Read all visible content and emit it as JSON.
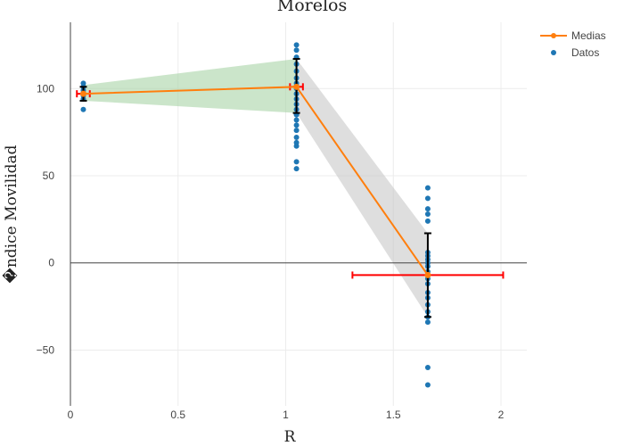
{
  "chart_data": {
    "type": "scatter",
    "title": "Morelos",
    "xlabel": "R",
    "ylabel": "�ndice Movilidad",
    "xlim": [
      0,
      2.12
    ],
    "ylim": [
      -82,
      138
    ],
    "x_ticks": [
      0,
      0.5,
      1,
      1.5,
      2
    ],
    "x_tick_labels": [
      "0",
      "0.5",
      "1",
      "1.5",
      "2"
    ],
    "y_ticks": [
      -50,
      0,
      50,
      100
    ],
    "y_tick_labels": [
      "−50",
      "0",
      "50",
      "100"
    ],
    "grid": true,
    "legend_position": "top-right",
    "colors": {
      "medias": "#ff7f0e",
      "datos": "#1f77b4",
      "band_green": "#a9d3a6",
      "band_gray": "#c8c8c8",
      "error_black": "#000000",
      "error_red": "#ff0000"
    },
    "series": [
      {
        "name": "Medias",
        "mode": "lines+markers",
        "x": [
          0.06,
          1.05,
          1.66
        ],
        "y": [
          97,
          101,
          -7
        ]
      },
      {
        "name": "Datos",
        "mode": "markers",
        "points": [
          {
            "x": 0.06,
            "y": 103
          },
          {
            "x": 0.06,
            "y": 101
          },
          {
            "x": 0.06,
            "y": 99
          },
          {
            "x": 0.06,
            "y": 97
          },
          {
            "x": 0.06,
            "y": 96
          },
          {
            "x": 0.06,
            "y": 94
          },
          {
            "x": 0.06,
            "y": 88
          },
          {
            "x": 1.05,
            "y": 125
          },
          {
            "x": 1.05,
            "y": 122
          },
          {
            "x": 1.05,
            "y": 118
          },
          {
            "x": 1.05,
            "y": 114
          },
          {
            "x": 1.05,
            "y": 110
          },
          {
            "x": 1.05,
            "y": 106
          },
          {
            "x": 1.05,
            "y": 103
          },
          {
            "x": 1.05,
            "y": 100
          },
          {
            "x": 1.05,
            "y": 97
          },
          {
            "x": 1.05,
            "y": 94
          },
          {
            "x": 1.05,
            "y": 91
          },
          {
            "x": 1.05,
            "y": 88
          },
          {
            "x": 1.05,
            "y": 85
          },
          {
            "x": 1.05,
            "y": 82
          },
          {
            "x": 1.05,
            "y": 79
          },
          {
            "x": 1.05,
            "y": 76
          },
          {
            "x": 1.05,
            "y": 72
          },
          {
            "x": 1.05,
            "y": 69
          },
          {
            "x": 1.05,
            "y": 67
          },
          {
            "x": 1.05,
            "y": 58
          },
          {
            "x": 1.05,
            "y": 54
          },
          {
            "x": 1.66,
            "y": 43
          },
          {
            "x": 1.66,
            "y": 37
          },
          {
            "x": 1.66,
            "y": 31
          },
          {
            "x": 1.66,
            "y": 28
          },
          {
            "x": 1.66,
            "y": 24
          },
          {
            "x": 1.66,
            "y": 6
          },
          {
            "x": 1.66,
            "y": 4
          },
          {
            "x": 1.66,
            "y": 2
          },
          {
            "x": 1.66,
            "y": 0
          },
          {
            "x": 1.66,
            "y": -2
          },
          {
            "x": 1.66,
            "y": -5
          },
          {
            "x": 1.66,
            "y": -9
          },
          {
            "x": 1.66,
            "y": -12
          },
          {
            "x": 1.66,
            "y": -17
          },
          {
            "x": 1.66,
            "y": -20
          },
          {
            "x": 1.66,
            "y": -24
          },
          {
            "x": 1.66,
            "y": -28
          },
          {
            "x": 1.66,
            "y": -31
          },
          {
            "x": 1.66,
            "y": -34
          },
          {
            "x": 1.66,
            "y": -60
          },
          {
            "x": 1.66,
            "y": -70
          }
        ]
      }
    ],
    "bands": [
      {
        "color": "green",
        "points": [
          [
            0.06,
            102
          ],
          [
            1.05,
            117
          ],
          [
            1.05,
            86
          ],
          [
            0.06,
            93
          ]
        ]
      },
      {
        "color": "gray",
        "points": [
          [
            1.05,
            117
          ],
          [
            1.66,
            17
          ],
          [
            1.66,
            -31
          ],
          [
            1.05,
            86
          ]
        ]
      }
    ],
    "y_error_bars": [
      {
        "x": 0.06,
        "y": 97,
        "low": 93,
        "high": 101
      },
      {
        "x": 1.05,
        "y": 101,
        "low": 86,
        "high": 117
      },
      {
        "x": 1.66,
        "y": -7,
        "low": -31,
        "high": 17
      }
    ],
    "x_error_bars": [
      {
        "y": 97,
        "x": 0.06,
        "low": 0.03,
        "high": 0.09
      },
      {
        "y": 101,
        "x": 1.05,
        "low": 1.02,
        "high": 1.08
      },
      {
        "y": -7,
        "x": 1.66,
        "low": 1.31,
        "high": 2.01
      }
    ]
  }
}
